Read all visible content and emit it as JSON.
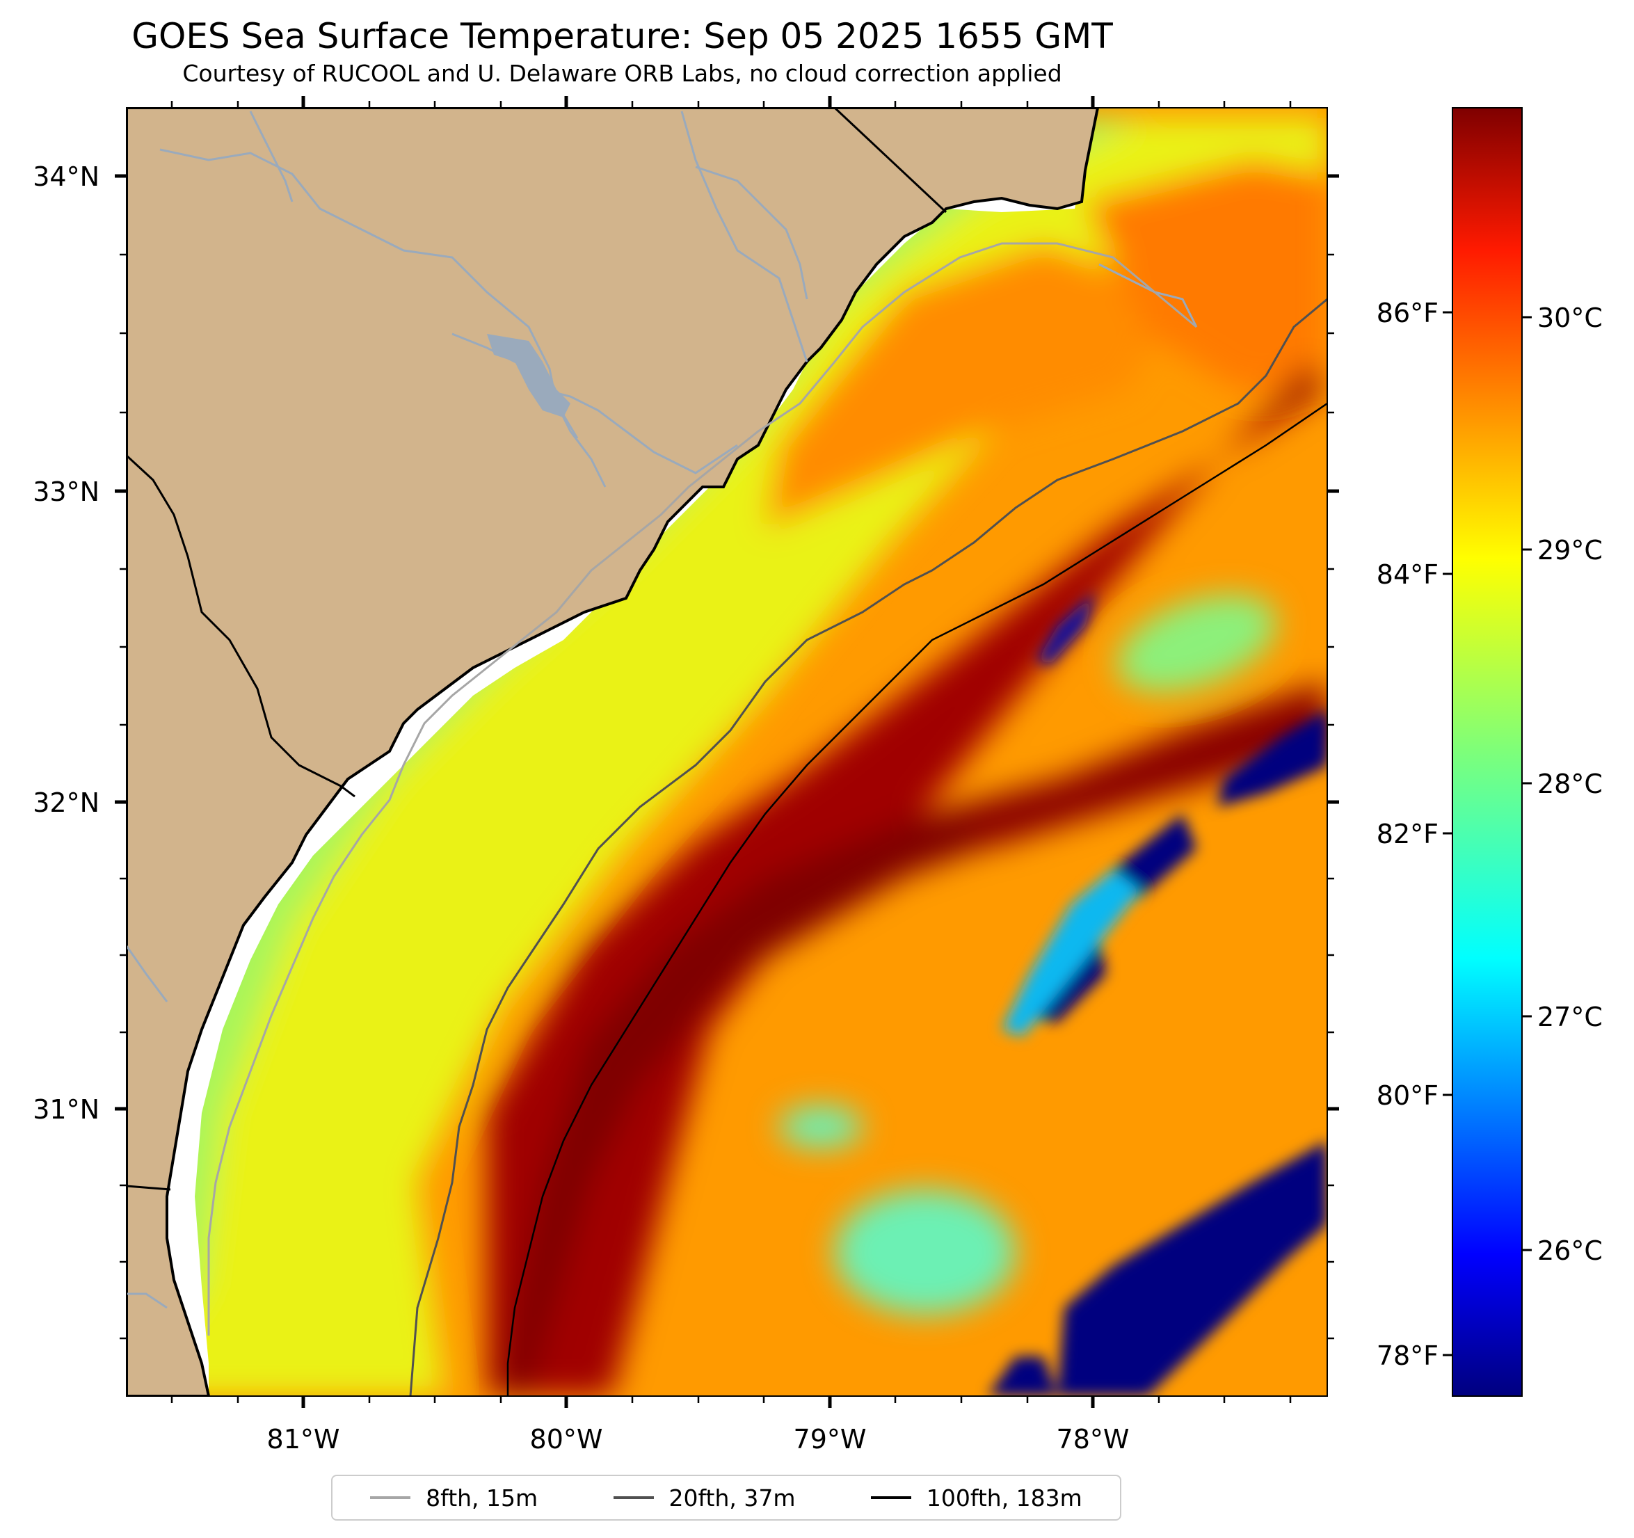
{
  "title": "GOES Sea Surface Temperature: Sep 05 2025 1655 GMT",
  "subtitle": "Courtesy of RUCOOL and U. Delaware ORB Labs, no cloud correction applied",
  "colors": {
    "land": "#d2b48c",
    "coastline": "#000000",
    "river": "#9aaabc",
    "isobath_8": "#a6a6a6",
    "isobath_20": "#505050",
    "isobath_100": "#000000",
    "cloud_cold": "#00007f"
  },
  "map": {
    "lon_range": [
      -81.67,
      -77.12
    ],
    "lat_range": [
      30.09,
      34.21
    ],
    "lon_ticks": [
      {
        "value": -81,
        "label": "81°W"
      },
      {
        "value": -80,
        "label": "80°W"
      },
      {
        "value": -79,
        "label": "79°W"
      },
      {
        "value": -78,
        "label": "78°W"
      }
    ],
    "lat_ticks": [
      {
        "value": 34,
        "label": "34°N"
      },
      {
        "value": 33,
        "label": "33°N"
      },
      {
        "value": 32,
        "label": "32°N"
      },
      {
        "value": 31,
        "label": "31°N"
      }
    ]
  },
  "colorbar": {
    "colormap": "jet",
    "range_c": [
      25.45,
      31.0
    ],
    "celsius_ticks": [
      {
        "value": 30,
        "label": "30°C"
      },
      {
        "value": 29,
        "label": "29°C"
      },
      {
        "value": 28,
        "label": "28°C"
      },
      {
        "value": 27,
        "label": "27°C"
      },
      {
        "value": 26,
        "label": "26°C"
      }
    ],
    "fahrenheit_ticks": [
      {
        "value": 86,
        "label": "86°F"
      },
      {
        "value": 84,
        "label": "84°F"
      },
      {
        "value": 82,
        "label": "82°F"
      },
      {
        "value": 80,
        "label": "80°F"
      },
      {
        "value": 78,
        "label": "78°F"
      }
    ]
  },
  "legend": {
    "entries": [
      {
        "label": "8fth, 15m",
        "color": "#a6a6a6"
      },
      {
        "label": "20fth, 37m",
        "color": "#505050"
      },
      {
        "label": "100fth, 183m",
        "color": "#000000"
      }
    ]
  }
}
